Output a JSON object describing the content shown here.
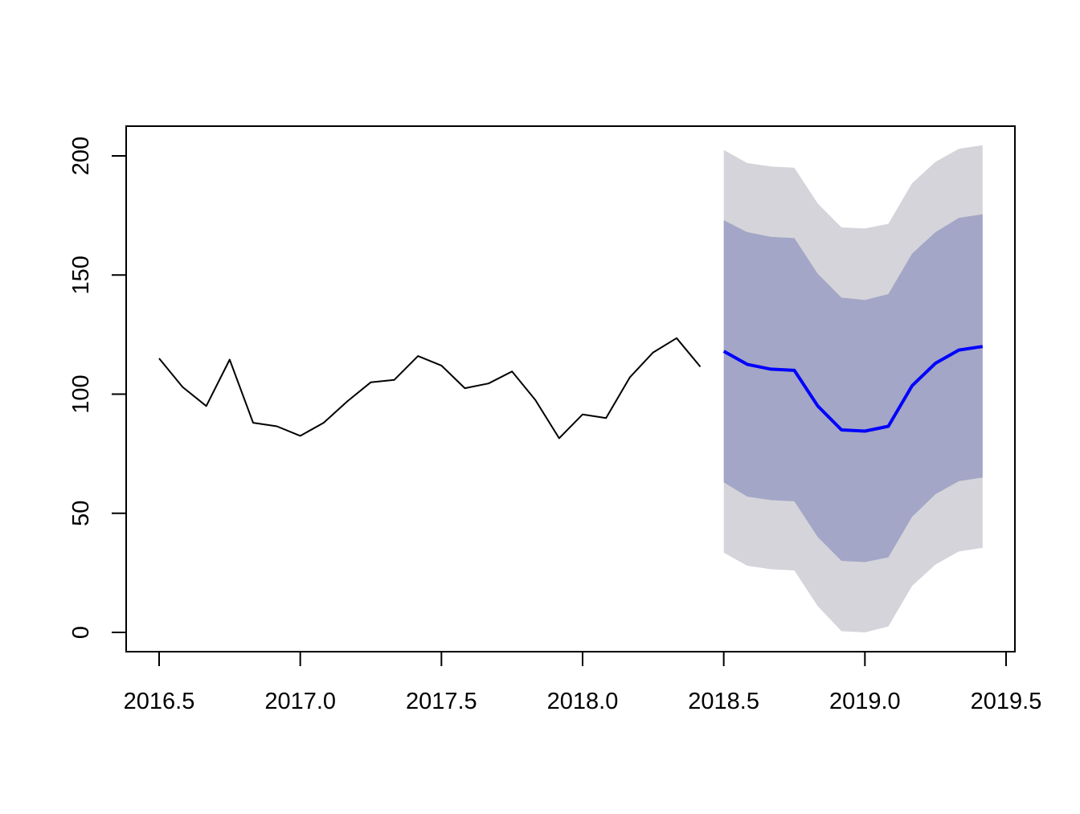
{
  "chart_data": {
    "type": "line",
    "title": "",
    "xlabel": "",
    "ylabel": "",
    "xlim": [
      2016.5,
      2019.5
    ],
    "ylim": [
      0,
      200
    ],
    "x_ticks": [
      2016.5,
      2017.0,
      2017.5,
      2018.0,
      2018.5,
      2019.0,
      2019.5
    ],
    "x_tick_labels": [
      "2016.5",
      "2017.0",
      "2017.5",
      "2018.0",
      "2018.5",
      "2019.0",
      "2019.5"
    ],
    "y_ticks": [
      0,
      50,
      100,
      150,
      200
    ],
    "y_tick_labels": [
      "0",
      "50",
      "100",
      "150",
      "200"
    ],
    "grid": false,
    "legend": "none",
    "observed": {
      "x": [
        2016.5,
        2016.583,
        2016.667,
        2016.75,
        2016.833,
        2016.917,
        2017.0,
        2017.083,
        2017.167,
        2017.25,
        2017.333,
        2017.417,
        2017.5,
        2017.583,
        2017.667,
        2017.75,
        2017.833,
        2017.917,
        2018.0,
        2018.083,
        2018.167,
        2018.25,
        2018.333,
        2018.417
      ],
      "values": [
        115,
        103,
        95,
        114.5,
        88,
        86.5,
        82.5,
        88,
        97,
        105,
        106,
        116,
        112,
        102.5,
        104.5,
        109.5,
        97.5,
        81.5,
        91.5,
        90,
        107,
        117.5,
        123.5,
        111.5
      ],
      "color": "#000000"
    },
    "forecast": {
      "x": [
        2018.5,
        2018.583,
        2018.667,
        2018.75,
        2018.833,
        2018.917,
        2019.0,
        2019.083,
        2019.167,
        2019.25,
        2019.333,
        2019.417
      ],
      "mean": [
        118,
        112.5,
        110.5,
        110,
        95,
        85,
        84.5,
        86.5,
        103.5,
        113,
        118.5,
        120
      ],
      "lower_80": [
        63,
        57,
        55.5,
        55,
        40,
        30,
        29.5,
        31.5,
        48.5,
        58,
        63.5,
        65
      ],
      "upper_80": [
        173,
        168,
        166,
        165.5,
        150.5,
        140.5,
        139.5,
        142,
        159,
        168,
        174,
        175.5
      ],
      "lower_95": [
        33.5,
        28,
        26.5,
        26,
        11,
        0.5,
        0,
        2.5,
        19.5,
        28.5,
        34,
        35.5
      ],
      "upper_95": [
        202.5,
        197,
        195.5,
        195,
        180,
        170,
        169.5,
        171.5,
        188.5,
        197.5,
        203,
        204.5
      ],
      "mean_color": "#0000ff",
      "band_80_color": "#a3a6c6",
      "band_95_color": "#d4d4da"
    }
  }
}
